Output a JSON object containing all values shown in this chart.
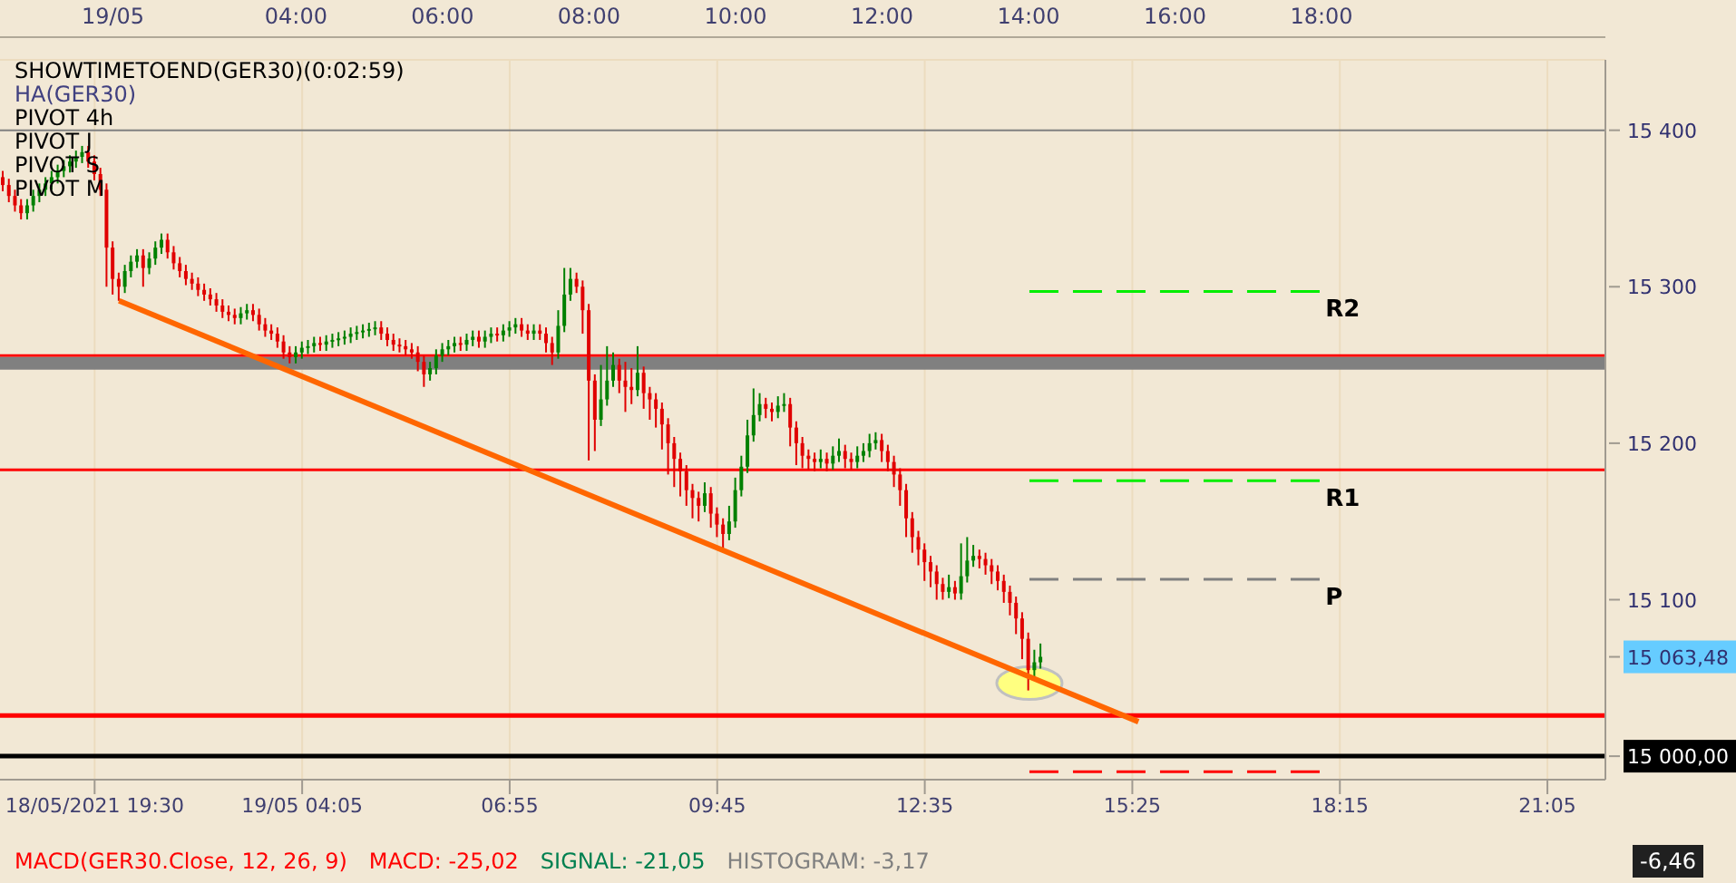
{
  "chart_data": {
    "type": "candlestick",
    "categories": [
      null,
      null,
      null,
      null,
      null,
      null,
      null,
      null,
      null,
      null,
      null,
      null,
      null,
      null,
      null,
      "18/05/2021 19:30",
      null,
      null,
      null,
      null,
      null,
      null,
      null,
      null,
      null,
      null,
      null,
      null,
      null,
      null,
      null,
      null,
      null,
      null,
      null,
      null,
      null,
      null,
      null,
      null,
      null,
      null,
      null,
      null,
      null,
      null,
      null,
      null,
      null,
      "19/05 04:05",
      null,
      null,
      null,
      null,
      null,
      null,
      null,
      null,
      null,
      null,
      null,
      null,
      null,
      null,
      null,
      null,
      null,
      null,
      null,
      null,
      null,
      null,
      null,
      null,
      null,
      null,
      null,
      null,
      null,
      null,
      null,
      null,
      null,
      "06:55",
      null,
      null,
      null,
      null,
      null,
      null,
      null,
      null,
      null,
      null,
      null,
      null,
      null,
      null,
      null,
      null,
      null,
      null,
      null,
      null,
      null,
      null,
      null,
      null,
      null,
      null,
      null,
      null,
      null,
      null,
      null,
      null,
      null,
      "09:45",
      null,
      null,
      null,
      null,
      null,
      null,
      null,
      null,
      null,
      null,
      null,
      null,
      null,
      null,
      null,
      null,
      null,
      null,
      null,
      null,
      null,
      null,
      null,
      null,
      null,
      null,
      null,
      null,
      null,
      null,
      null,
      null,
      null,
      "12:35",
      null,
      null,
      null,
      null,
      null,
      null,
      null,
      null,
      null,
      null,
      null,
      null,
      null,
      null,
      null,
      null,
      null,
      null,
      null,
      null,
      null,
      null,
      null,
      null,
      null,
      null,
      null,
      null,
      null,
      null,
      null,
      null,
      null,
      "15:25",
      null,
      null,
      null,
      null,
      null,
      null,
      null,
      null,
      null,
      null,
      null,
      null,
      null,
      null,
      null,
      null,
      null,
      null,
      null,
      null,
      null,
      null,
      null,
      null,
      null,
      null,
      null,
      null,
      null,
      null,
      null,
      null,
      null,
      "18:15",
      null,
      null,
      null,
      null,
      null,
      null,
      null,
      null,
      null,
      null,
      null,
      null,
      null,
      null,
      null,
      null,
      null,
      null,
      null,
      null,
      null,
      null,
      null,
      null,
      null,
      null,
      null,
      null,
      null,
      null,
      null,
      null,
      null,
      "21:05",
      null,
      null,
      null,
      null,
      null,
      null,
      null,
      null,
      null
    ],
    "ohlc": [
      [
        15370,
        15374,
        15361,
        15365
      ],
      [
        15365,
        15369,
        15354,
        15358
      ],
      [
        15358,
        15362,
        15348,
        15352
      ],
      [
        15352,
        15356,
        15343,
        15347
      ],
      [
        15347,
        15356,
        15343,
        15352
      ],
      [
        15352,
        15362,
        15348,
        15358
      ],
      [
        15358,
        15366,
        15354,
        15362
      ],
      [
        15362,
        15370,
        15358,
        15366
      ],
      [
        15366,
        15374,
        15362,
        15370
      ],
      [
        15370,
        15378,
        15366,
        15374
      ],
      [
        15374,
        15381,
        15370,
        15377
      ],
      [
        15377,
        15384,
        15373,
        15380
      ],
      [
        15380,
        15387,
        15376,
        15383
      ],
      [
        15383,
        15390,
        15379,
        15386
      ],
      [
        15386,
        15390,
        15376,
        15380
      ],
      [
        15380,
        15384,
        15368,
        15372
      ],
      [
        15372,
        15376,
        15358,
        15362
      ],
      [
        15362,
        15366,
        15300,
        15325
      ],
      [
        15325,
        15329,
        15295,
        15305
      ],
      [
        15305,
        15309,
        15291,
        15300
      ],
      [
        15300,
        15314,
        15296,
        15310
      ],
      [
        15310,
        15320,
        15306,
        15316
      ],
      [
        15316,
        15324,
        15312,
        15320
      ],
      [
        15320,
        15324,
        15300,
        15312
      ],
      [
        15312,
        15322,
        15308,
        15318
      ],
      [
        15318,
        15329,
        15314,
        15325
      ],
      [
        15325,
        15334,
        15321,
        15330
      ],
      [
        15330,
        15334,
        15318,
        15322
      ],
      [
        15322,
        15326,
        15311,
        15315
      ],
      [
        15315,
        15319,
        15306,
        15310
      ],
      [
        15310,
        15314,
        15301,
        15305
      ],
      [
        15305,
        15309,
        15298,
        15302
      ],
      [
        15302,
        15306,
        15294,
        15298
      ],
      [
        15298,
        15302,
        15291,
        15295
      ],
      [
        15295,
        15299,
        15288,
        15292
      ],
      [
        15292,
        15296,
        15284,
        15288
      ],
      [
        15288,
        15292,
        15280,
        15284
      ],
      [
        15284,
        15288,
        15278,
        15282
      ],
      [
        15282,
        15286,
        15276,
        15280
      ],
      [
        15280,
        15287,
        15276,
        15283
      ],
      [
        15283,
        15289,
        15279,
        15285
      ],
      [
        15285,
        15289,
        15278,
        15282
      ],
      [
        15282,
        15286,
        15272,
        15276
      ],
      [
        15276,
        15280,
        15268,
        15272
      ],
      [
        15272,
        15276,
        15266,
        15270
      ],
      [
        15270,
        15274,
        15261,
        15265
      ],
      [
        15265,
        15269,
        15254,
        15258
      ],
      [
        15258,
        15262,
        15251,
        15255
      ],
      [
        15255,
        15262,
        15251,
        15258
      ],
      [
        15258,
        15265,
        15254,
        15261
      ],
      [
        15261,
        15266,
        15257,
        15262
      ],
      [
        15262,
        15268,
        15258,
        15264
      ],
      [
        15264,
        15268,
        15259,
        15263
      ],
      [
        15263,
        15269,
        15259,
        15265
      ],
      [
        15265,
        15270,
        15261,
        15266
      ],
      [
        15266,
        15271,
        15262,
        15267
      ],
      [
        15267,
        15272,
        15263,
        15268
      ],
      [
        15268,
        15274,
        15264,
        15270
      ],
      [
        15270,
        15275,
        15266,
        15271
      ],
      [
        15271,
        15276,
        15267,
        15272
      ],
      [
        15272,
        15277,
        15268,
        15273
      ],
      [
        15273,
        15278,
        15269,
        15274
      ],
      [
        15274,
        15278,
        15266,
        15270
      ],
      [
        15270,
        15274,
        15262,
        15266
      ],
      [
        15266,
        15270,
        15259,
        15263
      ],
      [
        15263,
        15267,
        15258,
        15262
      ],
      [
        15262,
        15266,
        15256,
        15260
      ],
      [
        15260,
        15264,
        15254,
        15258
      ],
      [
        15258,
        15262,
        15246,
        15252
      ],
      [
        15252,
        15256,
        15236,
        15244
      ],
      [
        15244,
        15252,
        15240,
        15248
      ],
      [
        15248,
        15260,
        15244,
        15256
      ],
      [
        15256,
        15264,
        15252,
        15260
      ],
      [
        15260,
        15266,
        15256,
        15262
      ],
      [
        15262,
        15268,
        15258,
        15264
      ],
      [
        15264,
        15268,
        15259,
        15263
      ],
      [
        15263,
        15270,
        15259,
        15266
      ],
      [
        15266,
        15272,
        15262,
        15268
      ],
      [
        15268,
        15272,
        15261,
        15265
      ],
      [
        15265,
        15272,
        15261,
        15268
      ],
      [
        15268,
        15274,
        15264,
        15270
      ],
      [
        15270,
        15274,
        15265,
        15269
      ],
      [
        15269,
        15276,
        15265,
        15272
      ],
      [
        15272,
        15278,
        15268,
        15274
      ],
      [
        15274,
        15280,
        15270,
        15276
      ],
      [
        15276,
        15280,
        15268,
        15272
      ],
      [
        15272,
        15276,
        15266,
        15270
      ],
      [
        15270,
        15276,
        15266,
        15272
      ],
      [
        15272,
        15276,
        15266,
        15270
      ],
      [
        15270,
        15274,
        15258,
        15264
      ],
      [
        15264,
        15268,
        15250,
        15258
      ],
      [
        15258,
        15285,
        15254,
        15275
      ],
      [
        15275,
        15312,
        15271,
        15295
      ],
      [
        15295,
        15312,
        15291,
        15305
      ],
      [
        15305,
        15309,
        15296,
        15300
      ],
      [
        15300,
        15304,
        15270,
        15285
      ],
      [
        15285,
        15289,
        15189,
        15240
      ],
      [
        15240,
        15244,
        15195,
        15215
      ],
      [
        15215,
        15250,
        15211,
        15228
      ],
      [
        15228,
        15262,
        15224,
        15240
      ],
      [
        15240,
        15258,
        15236,
        15250
      ],
      [
        15250,
        15254,
        15232,
        15240
      ],
      [
        15240,
        15252,
        15220,
        15236
      ],
      [
        15236,
        15248,
        15225,
        15234
      ],
      [
        15234,
        15262,
        15230,
        15245
      ],
      [
        15245,
        15249,
        15222,
        15232
      ],
      [
        15232,
        15236,
        15215,
        15228
      ],
      [
        15228,
        15232,
        15210,
        15222
      ],
      [
        15222,
        15226,
        15196,
        15212
      ],
      [
        15212,
        15216,
        15180,
        15200
      ],
      [
        15200,
        15204,
        15172,
        15190
      ],
      [
        15190,
        15194,
        15166,
        15182
      ],
      [
        15182,
        15186,
        15160,
        15170
      ],
      [
        15170,
        15174,
        15152,
        15165
      ],
      [
        15165,
        15169,
        15150,
        15160
      ],
      [
        15160,
        15175,
        15156,
        15168
      ],
      [
        15168,
        15172,
        15146,
        15155
      ],
      [
        15155,
        15159,
        15140,
        15148
      ],
      [
        15148,
        15152,
        15131,
        15142
      ],
      [
        15142,
        15160,
        15138,
        15150
      ],
      [
        15150,
        15178,
        15146,
        15170
      ],
      [
        15170,
        15192,
        15166,
        15185
      ],
      [
        15185,
        15215,
        15181,
        15205
      ],
      [
        15205,
        15235,
        15201,
        15218
      ],
      [
        15218,
        15232,
        15214,
        15225
      ],
      [
        15225,
        15229,
        15216,
        15222
      ],
      [
        15222,
        15226,
        15214,
        15220
      ],
      [
        15220,
        15230,
        15216,
        15224
      ],
      [
        15224,
        15232,
        15220,
        15225
      ],
      [
        15225,
        15229,
        15198,
        15210
      ],
      [
        15210,
        15214,
        15186,
        15200
      ],
      [
        15200,
        15204,
        15184,
        15192
      ],
      [
        15192,
        15196,
        15183,
        15190
      ],
      [
        15190,
        15194,
        15182,
        15188
      ],
      [
        15188,
        15196,
        15184,
        15190
      ],
      [
        15190,
        15194,
        15182,
        15187
      ],
      [
        15187,
        15198,
        15183,
        15192
      ],
      [
        15192,
        15203,
        15188,
        15195
      ],
      [
        15195,
        15199,
        15184,
        15190
      ],
      [
        15190,
        15194,
        15183,
        15188
      ],
      [
        15188,
        15198,
        15184,
        15192
      ],
      [
        15192,
        15200,
        15188,
        15195
      ],
      [
        15195,
        15206,
        15191,
        15200
      ],
      [
        15200,
        15207,
        15196,
        15202
      ],
      [
        15202,
        15206,
        15188,
        15195
      ],
      [
        15195,
        15199,
        15182,
        15188
      ],
      [
        15188,
        15192,
        15172,
        15180
      ],
      [
        15180,
        15184,
        15160,
        15170
      ],
      [
        15170,
        15174,
        15140,
        15152
      ],
      [
        15152,
        15156,
        15130,
        15140
      ],
      [
        15140,
        15144,
        15122,
        15132
      ],
      [
        15132,
        15136,
        15112,
        15124
      ],
      [
        15124,
        15128,
        15108,
        15118
      ],
      [
        15118,
        15122,
        15100,
        15110
      ],
      [
        15110,
        15114,
        15100,
        15105
      ],
      [
        15105,
        15116,
        15101,
        15108
      ],
      [
        15108,
        15112,
        15100,
        15104
      ],
      [
        15104,
        15136,
        15100,
        15115
      ],
      [
        15115,
        15140,
        15111,
        15125
      ],
      [
        15125,
        15135,
        15121,
        15128
      ],
      [
        15128,
        15132,
        15120,
        15126
      ],
      [
        15126,
        15130,
        15116,
        15122
      ],
      [
        15122,
        15126,
        15110,
        15118
      ],
      [
        15118,
        15122,
        15106,
        15112
      ],
      [
        15112,
        15116,
        15098,
        15105
      ],
      [
        15105,
        15109,
        15090,
        15098
      ],
      [
        15098,
        15102,
        15078,
        15088
      ],
      [
        15088,
        15092,
        15062,
        15075
      ],
      [
        15075,
        15079,
        15042,
        15055
      ],
      [
        15055,
        15068,
        15050,
        15060
      ],
      [
        15060,
        15072,
        15056,
        15063.48
      ],
      null,
      null,
      null,
      null,
      null,
      null,
      null,
      null,
      null,
      null,
      null,
      null,
      null,
      null,
      null,
      null,
      null,
      null,
      null,
      null,
      null,
      null,
      null,
      null,
      null,
      null,
      null,
      null,
      null,
      null,
      null,
      null,
      null,
      null,
      null,
      null,
      null,
      null,
      null,
      null,
      null,
      null,
      null,
      null,
      null,
      null,
      null,
      null,
      null,
      null,
      null,
      null,
      null,
      null,
      null,
      null,
      null,
      null,
      null,
      null,
      null,
      null,
      null,
      null,
      null,
      null,
      null,
      null,
      null,
      null,
      null,
      null,
      null,
      null,
      null,
      null,
      null,
      null,
      null,
      null,
      null,
      null,
      null,
      null,
      null,
      null,
      null,
      null,
      null,
      null,
      null,
      null
    ],
    "colors": [
      "#e00000",
      "#e00000",
      "#e00000",
      "#e00000",
      "#008000",
      "#008000",
      "#008000",
      "#008000",
      "#008000",
      "#008000",
      "#008000",
      "#008000",
      "#008000",
      "#008000",
      "#e00000",
      "#e00000",
      "#e00000",
      "#e00000",
      "#e00000",
      "#e00000",
      "#008000",
      "#008000",
      "#008000",
      "#e00000",
      "#008000",
      "#008000",
      "#008000",
      "#e00000",
      "#e00000",
      "#e00000",
      "#e00000",
      "#e00000",
      "#e00000",
      "#e00000",
      "#e00000",
      "#e00000",
      "#e00000",
      "#e00000",
      "#e00000",
      "#008000",
      "#008000",
      "#e00000",
      "#e00000",
      "#e00000",
      "#e00000",
      "#e00000",
      "#e00000",
      "#e00000",
      "#008000",
      "#008000",
      "#008000",
      "#008000",
      "#e00000",
      "#008000",
      "#008000",
      "#008000",
      "#008000",
      "#008000",
      "#008000",
      "#008000",
      "#008000",
      "#008000",
      "#e00000",
      "#e00000",
      "#e00000",
      "#e00000",
      "#e00000",
      "#e00000",
      "#e00000",
      "#e00000",
      "#008000",
      "#008000",
      "#008000",
      "#008000",
      "#008000",
      "#e00000",
      "#008000",
      "#008000",
      "#e00000",
      "#008000",
      "#008000",
      "#e00000",
      "#008000",
      "#008000",
      "#008000",
      "#e00000",
      "#e00000",
      "#008000",
      "#e00000",
      "#e00000",
      "#e00000",
      "#008000",
      "#008000",
      "#008000",
      "#e00000",
      "#e00000",
      "#e00000",
      "#e00000",
      "#008000",
      "#008000",
      "#008000",
      "#e00000",
      "#e00000",
      "#e00000",
      "#008000",
      "#e00000",
      "#e00000",
      "#e00000",
      "#e00000",
      "#e00000",
      "#e00000",
      "#e00000",
      "#e00000",
      "#e00000",
      "#e00000",
      "#008000",
      "#e00000",
      "#e00000",
      "#e00000",
      "#008000",
      "#008000",
      "#008000",
      "#008000",
      "#008000",
      "#008000",
      "#e00000",
      "#e00000",
      "#008000",
      "#008000",
      "#e00000",
      "#e00000",
      "#e00000",
      "#e00000",
      "#e00000",
      "#008000",
      "#e00000",
      "#008000",
      "#008000",
      "#e00000",
      "#e00000",
      "#008000",
      "#008000",
      "#008000",
      "#008000",
      "#e00000",
      "#e00000",
      "#e00000",
      "#e00000",
      "#e00000",
      "#e00000",
      "#e00000",
      "#e00000",
      "#e00000",
      "#e00000",
      "#e00000",
      "#008000",
      "#e00000",
      "#008000",
      "#008000",
      "#008000",
      "#e00000",
      "#e00000",
      "#e00000",
      "#e00000",
      "#e00000",
      "#e00000",
      "#e00000",
      "#e00000",
      "#e00000",
      "#008000",
      "#008000",
      null,
      null,
      null,
      null,
      null,
      null,
      null,
      null,
      null,
      null,
      null,
      null,
      null,
      null,
      null,
      null,
      null,
      null,
      null,
      null,
      null,
      null,
      null,
      null,
      null,
      null,
      null,
      null,
      null,
      null,
      null,
      null,
      null,
      null,
      null,
      null,
      null,
      null,
      null,
      null,
      null,
      null,
      null,
      null,
      null,
      null,
      null,
      null,
      null,
      null,
      null,
      null,
      null,
      null,
      null,
      null,
      null,
      null,
      null,
      null,
      null,
      null,
      null,
      null,
      null,
      null,
      null,
      null,
      null,
      null,
      null,
      null,
      null,
      null,
      null,
      null,
      null,
      null,
      null,
      null,
      null,
      null,
      null,
      null,
      null,
      null,
      null,
      null,
      null,
      null,
      null,
      null
    ],
    "series": [
      {
        "type": "line",
        "color": "#ff6600",
        "values": [
          null,
          null,
          null,
          null,
          null,
          null,
          null,
          null,
          null,
          null,
          null,
          null,
          null,
          null,
          null,
          null,
          null,
          null,
          null,
          15291,
          null,
          null,
          null,
          null,
          null,
          null,
          null,
          null,
          null,
          null,
          null,
          null,
          null,
          null,
          null,
          null,
          null,
          null,
          null,
          null,
          null,
          null,
          null,
          null,
          null,
          null,
          null,
          null,
          null,
          null,
          null,
          null,
          null,
          null,
          null,
          null,
          null,
          null,
          null,
          null,
          null,
          null,
          null,
          null,
          null,
          null,
          null,
          null,
          null,
          null,
          null,
          null,
          null,
          null,
          null,
          null,
          null,
          null,
          null,
          null,
          null,
          null,
          null,
          null,
          null,
          null,
          null,
          null,
          null,
          null,
          null,
          null,
          null,
          null,
          null,
          null,
          null,
          null,
          null,
          null,
          null,
          null,
          null,
          null,
          null,
          null,
          null,
          null,
          null,
          null,
          null,
          null,
          null,
          null,
          null,
          null,
          null,
          null,
          null,
          null,
          null,
          null,
          null,
          null,
          null,
          null,
          null,
          null,
          null,
          null,
          null,
          null,
          null,
          null,
          null,
          null,
          null,
          null,
          null,
          null,
          null,
          null,
          null,
          null,
          null,
          null,
          null,
          null,
          null,
          null,
          null,
          null,
          null,
          null,
          null,
          null,
          null,
          null,
          null,
          null,
          null,
          null,
          null,
          null,
          null,
          null,
          null,
          null,
          null,
          null,
          null,
          null,
          null,
          null,
          null,
          null,
          null,
          null,
          null,
          null,
          null,
          null,
          null,
          null,
          null,
          null,
          15022,
          null,
          null,
          null,
          null,
          null,
          null,
          null,
          null,
          null,
          null,
          null,
          null,
          null,
          null,
          null,
          null,
          null,
          null,
          null,
          null,
          null,
          null,
          null,
          null,
          null,
          null,
          null,
          null,
          null,
          null,
          null,
          null,
          null,
          null,
          null,
          null,
          null,
          null,
          null,
          null,
          null,
          null,
          null,
          null,
          null,
          null,
          null,
          null,
          null,
          null,
          null,
          null,
          null,
          null,
          null,
          null,
          null,
          null,
          null,
          null,
          null,
          null,
          null,
          null,
          null,
          null,
          null,
          null,
          null,
          null,
          null,
          null,
          null,
          null,
          null,
          null
        ]
      }
    ],
    "ylim": [
      14985,
      15445
    ],
    "yticks": [
      {
        "value": 15000,
        "label": "15 000,00"
      },
      {
        "value": 15063.48,
        "label": "15 063,48"
      },
      {
        "value": 15100,
        "label": "15 100"
      },
      {
        "value": 15200,
        "label": "15 200"
      },
      {
        "value": 15300,
        "label": "15 300"
      },
      {
        "value": 15400,
        "label": "15 400"
      }
    ],
    "grid": true,
    "ref_lines": [
      {
        "axis": "y",
        "value": 15400,
        "color": "#808080"
      },
      {
        "axis": "y",
        "value": 15256,
        "color": "#ff0000"
      },
      {
        "axis": "y",
        "value": 15251,
        "color": "#808080"
      },
      {
        "axis": "y",
        "value": 15183,
        "color": "#ff0000"
      },
      {
        "axis": "y",
        "value": 15026,
        "color": "#ff0000"
      },
      {
        "axis": "y",
        "value": 15000,
        "color": "#000000"
      },
      {
        "axis": "y",
        "value": 15297,
        "label": "R2",
        "color": "#00ee00",
        "line_style": "dashed"
      },
      {
        "axis": "y",
        "value": 15176,
        "label": "R1",
        "color": "#00ee00",
        "line_style": "dashed"
      },
      {
        "axis": "y",
        "value": 15113,
        "label": "P",
        "color": "#808080",
        "line_style": "dashed"
      },
      {
        "axis": "y",
        "value": 14990,
        "color": "#ff0000",
        "line_style": "dashed"
      }
    ],
    "annotations": [
      "19/05",
      "04:00",
      "06:00",
      "08:00",
      "10:00",
      "12:00",
      "14:00",
      "16:00",
      "18:00",
      "SHOWTIMETOEND(GER30)(0:02:59)",
      "HA(GER30)",
      "PIVOT 4h",
      "PIVOT J",
      "PIVOT S",
      "PIVOT M",
      "MACD(GER30.Close, 12, 26, 9)",
      "MACD: -25,02",
      "SIGNAL: -21,05",
      "HISTOGRAM: -3,17",
      "-6,46"
    ]
  }
}
